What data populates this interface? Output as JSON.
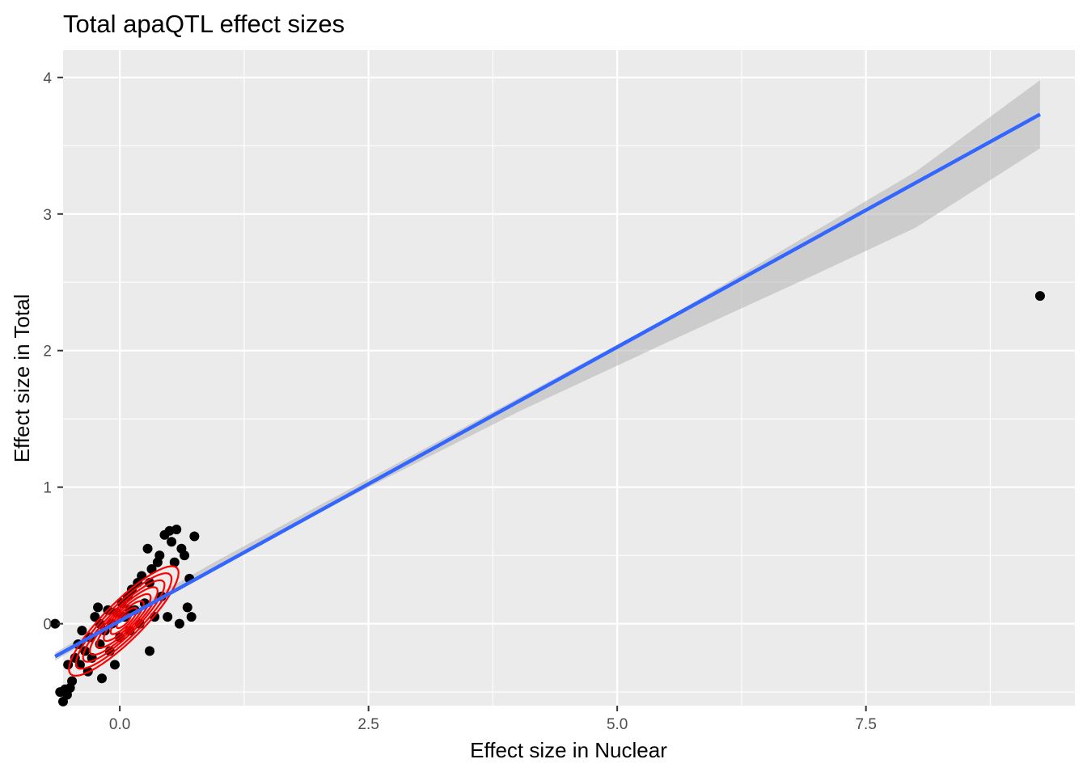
{
  "chart_data": {
    "type": "scatter",
    "title": "Total apaQTL effect sizes",
    "xlabel": "Effect size in Nuclear",
    "ylabel": "Effect size in Total",
    "xlim": [
      -0.57,
      9.6
    ],
    "ylim": [
      -0.6,
      4.2
    ],
    "x_ticks": [
      0.0,
      2.5,
      5.0,
      7.5
    ],
    "x_tick_labels": [
      "0.0",
      "2.5",
      "5.0",
      "7.5"
    ],
    "y_ticks": [
      0,
      1,
      2,
      3,
      4
    ],
    "y_tick_labels": [
      "0",
      "1",
      "2",
      "3",
      "4"
    ],
    "grid": true,
    "legend": "none",
    "colors": {
      "panel": "#ebebeb",
      "grid": "#ffffff",
      "points": "#000000",
      "density": "#ff0000",
      "fit_line": "#3366ff",
      "confidence_band": "#b3b3b3"
    },
    "points": [
      {
        "x": -0.65,
        "y": 0.0
      },
      {
        "x": -0.6,
        "y": -0.5
      },
      {
        "x": -0.57,
        "y": -0.57
      },
      {
        "x": -0.55,
        "y": -0.48
      },
      {
        "x": -0.53,
        "y": -0.52
      },
      {
        "x": -0.5,
        "y": -0.47
      },
      {
        "x": -0.48,
        "y": -0.42
      },
      {
        "x": -0.52,
        "y": -0.3
      },
      {
        "x": -0.45,
        "y": -0.25
      },
      {
        "x": -0.42,
        "y": -0.15
      },
      {
        "x": -0.38,
        "y": -0.05
      },
      {
        "x": -0.4,
        "y": -0.3
      },
      {
        "x": -0.35,
        "y": -0.2
      },
      {
        "x": -0.32,
        "y": -0.35
      },
      {
        "x": -0.3,
        "y": -0.1
      },
      {
        "x": -0.28,
        "y": -0.25
      },
      {
        "x": -0.25,
        "y": 0.05
      },
      {
        "x": -0.22,
        "y": 0.12
      },
      {
        "x": -0.2,
        "y": -0.15
      },
      {
        "x": -0.18,
        "y": -0.4
      },
      {
        "x": -0.15,
        "y": -0.05
      },
      {
        "x": -0.12,
        "y": 0.1
      },
      {
        "x": -0.1,
        "y": -0.2
      },
      {
        "x": -0.08,
        "y": 0.0
      },
      {
        "x": -0.05,
        "y": -0.3
      },
      {
        "x": -0.03,
        "y": 0.08
      },
      {
        "x": 0.0,
        "y": -0.1
      },
      {
        "x": 0.02,
        "y": 0.15
      },
      {
        "x": 0.05,
        "y": 0.05
      },
      {
        "x": 0.08,
        "y": 0.2
      },
      {
        "x": 0.1,
        "y": -0.05
      },
      {
        "x": 0.12,
        "y": 0.25
      },
      {
        "x": 0.15,
        "y": 0.1
      },
      {
        "x": 0.18,
        "y": 0.3
      },
      {
        "x": 0.2,
        "y": 0.0
      },
      {
        "x": 0.22,
        "y": 0.35
      },
      {
        "x": 0.25,
        "y": 0.15
      },
      {
        "x": 0.28,
        "y": 0.55
      },
      {
        "x": 0.3,
        "y": -0.2
      },
      {
        "x": 0.32,
        "y": 0.4
      },
      {
        "x": 0.35,
        "y": 0.05
      },
      {
        "x": 0.38,
        "y": 0.45
      },
      {
        "x": 0.4,
        "y": 0.5
      },
      {
        "x": 0.42,
        "y": 0.2
      },
      {
        "x": 0.45,
        "y": 0.65
      },
      {
        "x": 0.48,
        "y": 0.05
      },
      {
        "x": 0.5,
        "y": 0.68
      },
      {
        "x": 0.52,
        "y": 0.6
      },
      {
        "x": 0.55,
        "y": 0.45
      },
      {
        "x": 0.57,
        "y": 0.69
      },
      {
        "x": 0.6,
        "y": 0.0
      },
      {
        "x": 0.62,
        "y": 0.55
      },
      {
        "x": 0.65,
        "y": 0.5
      },
      {
        "x": 0.68,
        "y": 0.12
      },
      {
        "x": 0.7,
        "y": 0.33
      },
      {
        "x": 0.72,
        "y": 0.05
      },
      {
        "x": 0.75,
        "y": 0.64
      },
      {
        "x": 0.3,
        "y": 0.3
      },
      {
        "x": -0.2,
        "y": 0.0
      },
      {
        "x": 0.1,
        "y": 0.1
      },
      {
        "x": 9.25,
        "y": 2.4
      }
    ],
    "fit_line": {
      "x1": -0.65,
      "y1": -0.24,
      "x2": 9.25,
      "y2": 3.73
    },
    "confidence_band": {
      "x": [
        -0.65,
        1.0,
        2.5,
        4.0,
        5.5,
        7.0,
        8.0,
        9.25
      ],
      "lower": [
        -0.27,
        0.43,
        1.0,
        1.55,
        2.06,
        2.56,
        2.9,
        3.48
      ],
      "upper": [
        -0.21,
        0.47,
        1.06,
        1.65,
        2.24,
        2.88,
        3.31,
        3.98
      ]
    },
    "density_contours": [
      {
        "cx": 0.04,
        "cy": 0.02,
        "rx": 0.55,
        "ry": 0.14,
        "angle": 45
      },
      {
        "cx": 0.04,
        "cy": 0.02,
        "rx": 0.48,
        "ry": 0.12,
        "angle": 45
      },
      {
        "cx": 0.04,
        "cy": 0.02,
        "rx": 0.41,
        "ry": 0.1,
        "angle": 45
      },
      {
        "cx": 0.04,
        "cy": 0.02,
        "rx": 0.34,
        "ry": 0.085,
        "angle": 45
      },
      {
        "cx": 0.04,
        "cy": 0.02,
        "rx": 0.27,
        "ry": 0.07,
        "angle": 45
      },
      {
        "cx": 0.04,
        "cy": 0.02,
        "rx": 0.2,
        "ry": 0.055,
        "angle": 45
      },
      {
        "cx": 0.04,
        "cy": 0.02,
        "rx": 0.13,
        "ry": 0.04,
        "angle": 45
      },
      {
        "cx": 0.04,
        "cy": 0.02,
        "rx": 0.07,
        "ry": 0.025,
        "angle": 45
      }
    ]
  }
}
